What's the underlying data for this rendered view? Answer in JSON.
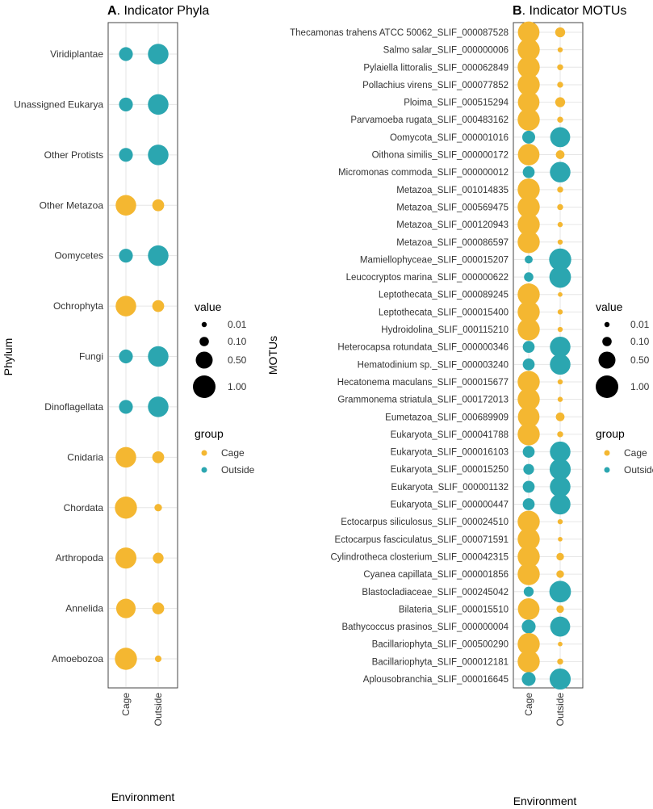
{
  "colors": {
    "Cage": "#F4B731",
    "Outside": "#2BA6B0",
    "panel_border": "#444444",
    "grid": "#e6e6e6"
  },
  "chart_data": [
    {
      "type": "bubble",
      "panel": "A",
      "title_prefix": "A",
      "title_text": ". Indicator Phyla",
      "xlabel": "Environment",
      "ylabel": "Phylum",
      "x_categories": [
        "Cage",
        "Outside"
      ],
      "rows": [
        {
          "label": "Viridiplantae",
          "group": "Outside",
          "values": [
            0.3,
            0.8
          ]
        },
        {
          "label": "Unassigned Eukarya",
          "group": "Outside",
          "values": [
            0.3,
            0.8
          ]
        },
        {
          "label": "Other Protists",
          "group": "Outside",
          "values": [
            0.3,
            0.8
          ]
        },
        {
          "label": "Other Metazoa",
          "group": "Cage",
          "values": [
            0.8,
            0.2
          ]
        },
        {
          "label": "Oomycetes",
          "group": "Outside",
          "values": [
            0.3,
            0.8
          ]
        },
        {
          "label": "Ochrophyta",
          "group": "Cage",
          "values": [
            0.8,
            0.2
          ]
        },
        {
          "label": "Fungi",
          "group": "Outside",
          "values": [
            0.3,
            0.8
          ]
        },
        {
          "label": "Dinoflagellata",
          "group": "Outside",
          "values": [
            0.3,
            0.8
          ]
        },
        {
          "label": "Cnidaria",
          "group": "Cage",
          "values": [
            0.8,
            0.2
          ]
        },
        {
          "label": "Chordata",
          "group": "Cage",
          "values": [
            0.95,
            0.05
          ]
        },
        {
          "label": "Arthropoda",
          "group": "Cage",
          "values": [
            0.85,
            0.15
          ]
        },
        {
          "label": "Annelida",
          "group": "Cage",
          "values": [
            0.7,
            0.2
          ]
        },
        {
          "label": "Amoebozoa",
          "group": "Cage",
          "values": [
            0.95,
            0.03
          ]
        }
      ]
    },
    {
      "type": "bubble",
      "panel": "B",
      "title_prefix": "B",
      "title_text": ". Indicator MOTUs",
      "xlabel": "Environment",
      "ylabel": "MOTUs",
      "x_categories": [
        "Cage",
        "Outside"
      ],
      "rows": [
        {
          "label": "Thecamonas trahens ATCC 50062_SLIF_000087528",
          "group": "Cage",
          "values": [
            0.9,
            0.12
          ]
        },
        {
          "label": "Salmo salar_SLIF_000000006",
          "group": "Cage",
          "values": [
            0.95,
            0.01
          ]
        },
        {
          "label": "Pylaiella littoralis_SLIF_000062849",
          "group": "Cage",
          "values": [
            0.95,
            0.02
          ]
        },
        {
          "label": "Pollachius virens_SLIF_000077852",
          "group": "Cage",
          "values": [
            0.95,
            0.02
          ]
        },
        {
          "label": "Ploima_SLIF_000515294",
          "group": "Cage",
          "values": [
            0.9,
            0.12
          ]
        },
        {
          "label": "Parvamoeba rugata_SLIF_000483162",
          "group": "Cage",
          "values": [
            0.95,
            0.02
          ]
        },
        {
          "label": "Oomycota_SLIF_000001016",
          "group": "Outside",
          "values": [
            0.25,
            0.75
          ]
        },
        {
          "label": "Oithona similis_SLIF_000000172",
          "group": "Cage",
          "values": [
            0.9,
            0.08
          ]
        },
        {
          "label": "Micromonas commoda_SLIF_000000012",
          "group": "Outside",
          "values": [
            0.2,
            0.8
          ]
        },
        {
          "label": "Metazoa_SLIF_001014835",
          "group": "Cage",
          "values": [
            0.95,
            0.02
          ]
        },
        {
          "label": "Metazoa_SLIF_000569475",
          "group": "Cage",
          "values": [
            0.95,
            0.02
          ]
        },
        {
          "label": "Metazoa_SLIF_000120943",
          "group": "Cage",
          "values": [
            0.95,
            0.01
          ]
        },
        {
          "label": "Metazoa_SLIF_000086597",
          "group": "Cage",
          "values": [
            0.95,
            0.01
          ]
        },
        {
          "label": "Mamiellophyceae_SLIF_000015207",
          "group": "Outside",
          "values": [
            0.06,
            0.95
          ]
        },
        {
          "label": "Leucocryptos marina_SLIF_000000622",
          "group": "Outside",
          "values": [
            0.1,
            0.9
          ]
        },
        {
          "label": "Leptothecata_SLIF_000089245",
          "group": "Cage",
          "values": [
            0.95,
            0.005
          ]
        },
        {
          "label": "Leptothecata_SLIF_000015400",
          "group": "Cage",
          "values": [
            0.95,
            0.01
          ]
        },
        {
          "label": "Hydroidolina_SLIF_000115210",
          "group": "Cage",
          "values": [
            0.95,
            0.01
          ]
        },
        {
          "label": "Heterocapsa rotundata_SLIF_000000346",
          "group": "Outside",
          "values": [
            0.2,
            0.8
          ]
        },
        {
          "label": "Hematodinium sp._SLIF_000003240",
          "group": "Outside",
          "values": [
            0.2,
            0.8
          ]
        },
        {
          "label": "Hecatonema maculans_SLIF_000015677",
          "group": "Cage",
          "values": [
            0.95,
            0.01
          ]
        },
        {
          "label": "Grammonema striatula_SLIF_000172013",
          "group": "Cage",
          "values": [
            0.95,
            0.01
          ]
        },
        {
          "label": "Eumetazoa_SLIF_000689909",
          "group": "Cage",
          "values": [
            0.9,
            0.08
          ]
        },
        {
          "label": "Eukaryota_SLIF_000041788",
          "group": "Cage",
          "values": [
            0.95,
            0.02
          ]
        },
        {
          "label": "Eukaryota_SLIF_000016103",
          "group": "Outside",
          "values": [
            0.2,
            0.8
          ]
        },
        {
          "label": "Eukaryota_SLIF_000015250",
          "group": "Outside",
          "values": [
            0.15,
            0.85
          ]
        },
        {
          "label": "Eukaryota_SLIF_000001132",
          "group": "Outside",
          "values": [
            0.2,
            0.8
          ]
        },
        {
          "label": "Eukaryota_SLIF_000000447",
          "group": "Outside",
          "values": [
            0.2,
            0.8
          ]
        },
        {
          "label": "Ectocarpus siliculosus_SLIF_000024510",
          "group": "Cage",
          "values": [
            0.95,
            0.01
          ]
        },
        {
          "label": "Ectocarpus fasciculatus_SLIF_000071591",
          "group": "Cage",
          "values": [
            0.95,
            0.005
          ]
        },
        {
          "label": "Cylindrotheca closterium_SLIF_000042315",
          "group": "Cage",
          "values": [
            0.95,
            0.05
          ]
        },
        {
          "label": "Cyanea capillata_SLIF_000001856",
          "group": "Cage",
          "values": [
            0.95,
            0.05
          ]
        },
        {
          "label": "Blastocladiaceae_SLIF_000245042",
          "group": "Outside",
          "values": [
            0.12,
            0.9
          ]
        },
        {
          "label": "Bilateria_SLIF_000015510",
          "group": "Cage",
          "values": [
            0.9,
            0.05
          ]
        },
        {
          "label": "Bathycoccus prasinos_SLIF_000000004",
          "group": "Outside",
          "values": [
            0.3,
            0.75
          ]
        },
        {
          "label": "Bacillariophyta_SLIF_000500290",
          "group": "Cage",
          "values": [
            0.95,
            0.005
          ]
        },
        {
          "label": "Bacillariophyta_SLIF_000012181",
          "group": "Cage",
          "values": [
            0.95,
            0.02
          ]
        },
        {
          "label": "Aplousobranchia_SLIF_000016645",
          "group": "Outside",
          "values": [
            0.3,
            0.85
          ]
        }
      ]
    }
  ],
  "legends": [
    {
      "size_title": "value",
      "size_entries": [
        {
          "label": "0.01",
          "value": 0.01
        },
        {
          "label": "0.10",
          "value": 0.1
        },
        {
          "label": "0.50",
          "value": 0.5
        },
        {
          "label": "1.00",
          "value": 1.0
        }
      ],
      "group_title": "group",
      "group_entries": [
        "Cage",
        "Outside"
      ]
    },
    {
      "size_title": "value",
      "size_entries": [
        {
          "label": "0.01",
          "value": 0.01
        },
        {
          "label": "0.10",
          "value": 0.1
        },
        {
          "label": "0.50",
          "value": 0.5
        },
        {
          "label": "1.00",
          "value": 1.0
        }
      ],
      "group_title": "group",
      "group_entries": [
        "Cage",
        "Outside"
      ]
    }
  ]
}
